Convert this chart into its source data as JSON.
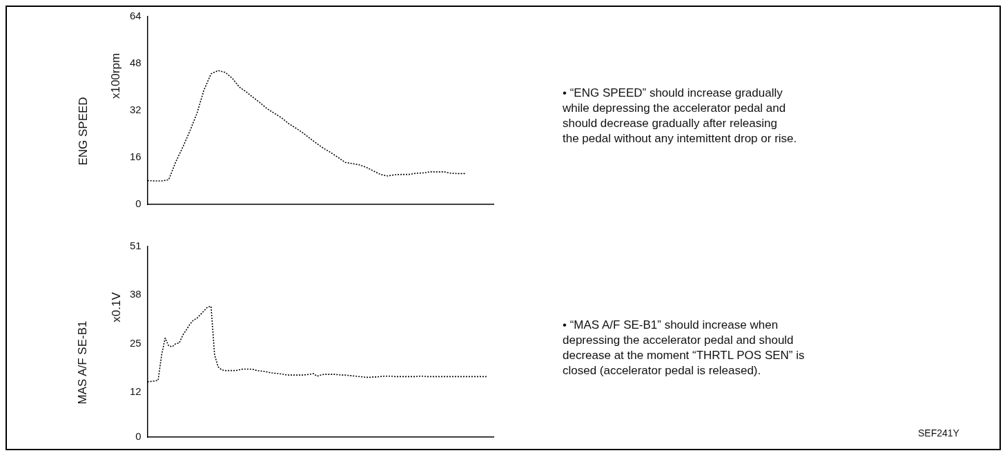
{
  "chart_data": [
    {
      "type": "line",
      "ylabel": "ENG SPEED",
      "annotations": [
        "x100rpm",
        "• “ENG SPEED” should increase gradually\nwhile depressing the accelerator pedal and\nshould decrease gradually after releasing\nthe pedal without any intemittent drop or rise."
      ],
      "categories": [
        null,
        null,
        null,
        null,
        null,
        null,
        null,
        null,
        null,
        null,
        null,
        null,
        null,
        null,
        null,
        null,
        null,
        null,
        null,
        null,
        null,
        null,
        null,
        null,
        null,
        null,
        null,
        null,
        null,
        null,
        null,
        null,
        null,
        null,
        null,
        null,
        null,
        null,
        null,
        null,
        null,
        null,
        null,
        null,
        null,
        null,
        null,
        null,
        null,
        null
      ],
      "series": [
        {
          "color": "#000000",
          "values": [
            8.1,
            8,
            8,
            8.4,
            14.5,
            19.5,
            25,
            31,
            39,
            44.5,
            45.6,
            45,
            43,
            40,
            38.3,
            36.4,
            34.5,
            32.5,
            31,
            29.5,
            27.5,
            26,
            24.4,
            22.5,
            20.7,
            19,
            17.6,
            16,
            14.3,
            13.9,
            13.5,
            12.6,
            11.4,
            10.2,
            9.7,
            10.1,
            10.2,
            10.2,
            10.6,
            10.7,
            11.1,
            11.1,
            11.1,
            10.6,
            10.5,
            10.5,
            null,
            null,
            null,
            null
          ]
        }
      ],
      "ylim": [
        0,
        64
      ],
      "yticks": [
        0,
        16,
        32,
        48,
        64
      ],
      "grid": false,
      "legend": false,
      "marker": "none",
      "line_style": "dotted",
      "tick_labels": "y"
    },
    {
      "type": "line",
      "ylabel": "MAS A/F SE-B1",
      "annotations": [
        "x0.1V",
        "• “MAS A/F SE-B1” should increase when\ndepressing the accelerator pedal and  should\ndecrease at the moment “THRTL POS SEN” is\nclosed (accelerator pedal is released).",
        "SEF241Y"
      ],
      "categories": [
        null,
        null,
        null,
        null,
        null,
        null,
        null,
        null,
        null,
        null,
        null,
        null,
        null,
        null,
        null,
        null,
        null,
        null,
        null,
        null,
        null,
        null,
        null,
        null,
        null,
        null,
        null,
        null,
        null,
        null,
        null,
        null,
        null,
        null,
        null,
        null,
        null,
        null,
        null,
        null,
        null,
        null,
        null,
        null,
        null,
        null,
        null,
        null,
        null,
        null,
        null,
        null,
        null,
        null,
        null,
        null,
        null,
        null,
        null,
        null,
        null,
        null,
        null,
        null,
        null,
        null,
        null,
        null,
        null,
        null,
        null,
        null,
        null,
        null,
        null,
        null,
        null,
        null,
        null,
        null,
        null,
        null,
        null,
        null,
        null,
        null,
        null,
        null,
        null,
        null,
        null,
        null,
        null,
        null,
        null,
        null,
        null,
        null,
        null
      ],
      "series": [
        {
          "color": "#000000",
          "values": [
            14.8,
            14.9,
            15,
            15.2,
            22,
            26.5,
            24.4,
            24.2,
            25,
            25.2,
            27.3,
            28.7,
            30.2,
            31.3,
            31.8,
            32.8,
            33.8,
            34.8,
            35,
            22,
            18.8,
            18,
            17.8,
            17.8,
            17.8,
            17.8,
            18,
            18.2,
            18.2,
            18.2,
            18.1,
            17.8,
            17.7,
            17.6,
            17.4,
            17.2,
            17.1,
            17,
            16.9,
            16.7,
            16.6,
            16.6,
            16.6,
            16.6,
            16.6,
            16.7,
            16.8,
            17,
            16.3,
            16.6,
            16.8,
            16.8,
            16.8,
            16.8,
            16.7,
            16.6,
            16.6,
            16.5,
            16.4,
            16.3,
            16.2,
            16.1,
            16,
            16,
            16.1,
            16.1,
            16.2,
            16.3,
            16.3,
            16.3,
            16.2,
            16.2,
            16.2,
            16.2,
            16.2,
            16.2,
            16.2,
            16.3,
            16.3,
            16.2,
            16.2,
            16.2,
            16.2,
            16.2,
            16.2,
            16.2,
            16.2,
            16.2,
            16.2,
            16.2,
            16.2,
            16.2,
            16.2,
            16.2,
            16.2,
            16.2,
            16.2,
            null,
            null
          ]
        }
      ],
      "ylim": [
        0,
        51
      ],
      "yticks": [
        0,
        12,
        25,
        38,
        51
      ],
      "grid": false,
      "legend": false,
      "marker": "none",
      "line_style": "dotted",
      "tick_labels": "y"
    }
  ]
}
